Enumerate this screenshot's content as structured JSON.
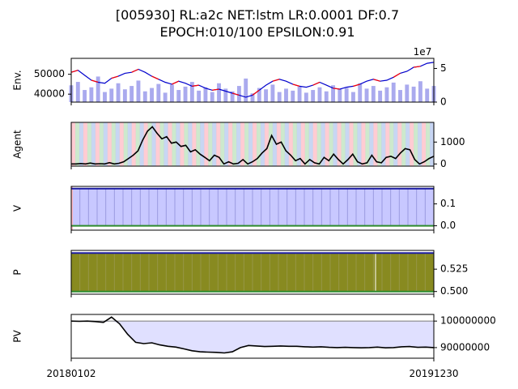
{
  "title": {
    "line1": "[005930] RL:a2c NET:lstm LR:0.0001 DF:0.7",
    "line2": "EPOCH:010/100 EPSILON:0.91"
  },
  "colors": {
    "price_line": "#0000cc",
    "price_up": "#ff0000",
    "volume": "#aaaaee",
    "agent_line": "#000000",
    "buy_band": "#ffb6c1",
    "sell_band": "#b0c4ee",
    "hold_band": "#b8e0b8",
    "v_fill": "#c8c8ff",
    "v_line_top": "#1a1aa0",
    "v_line_bottom": "#2e8b2e",
    "p_fill": "#888a20",
    "p_line_top": "#1a1aa0",
    "p_line_bottom": "#2e8b2e",
    "pv_line": "#000000",
    "pv_fill": "#e0e0ff",
    "pv_base": "#888888"
  },
  "x_ticks": [
    "20180102",
    "20191230"
  ],
  "chart_data": [
    {
      "type": "line",
      "name": "env",
      "ylabel": "Env.",
      "y_ticks": [
        40000,
        50000
      ],
      "ylim": [
        36000,
        58000
      ],
      "y2_ticks": [
        0,
        5
      ],
      "y2_label": "1e7",
      "y2lim": [
        0,
        6.5
      ],
      "price": [
        51000,
        52000,
        49500,
        47000,
        46000,
        45500,
        48000,
        49000,
        50500,
        51000,
        52500,
        51000,
        49000,
        47500,
        46000,
        45000,
        46500,
        45500,
        44000,
        44500,
        43000,
        42000,
        42500,
        41500,
        40500,
        39500,
        38500,
        39500,
        42000,
        44500,
        46500,
        47500,
        46500,
        45000,
        44000,
        43500,
        44500,
        46000,
        44500,
        43000,
        42500,
        43500,
        44000,
        45000,
        46500,
        47500,
        46500,
        47000,
        48500,
        50500,
        51500,
        53500,
        54000,
        55500,
        56000
      ],
      "volume": [
        2.5,
        3.0,
        1.8,
        2.2,
        3.8,
        1.5,
        2.0,
        2.8,
        1.9,
        2.4,
        3.2,
        1.6,
        2.1,
        2.7,
        1.4,
        2.6,
        1.8,
        2.3,
        3.0,
        1.7,
        2.2,
        1.5,
        2.8,
        2.0,
        1.6,
        2.4,
        3.5,
        1.3,
        2.1,
        1.9,
        2.6,
        1.5,
        2.0,
        1.7,
        2.3,
        1.4,
        1.8,
        2.2,
        1.6,
        2.5,
        1.9,
        2.1,
        1.5,
        2.8,
        2.0,
        2.4,
        1.7,
        2.2,
        2.9,
        1.8,
        2.6,
        2.3,
        3.1,
        2.0,
        2.4
      ]
    },
    {
      "type": "line",
      "name": "agent",
      "ylabel": "Agent",
      "y_ticks": [
        0,
        1000
      ],
      "ylim": [
        -100,
        1900
      ],
      "values": [
        0,
        0,
        20,
        0,
        40,
        0,
        10,
        0,
        60,
        0,
        30,
        100,
        250,
        400,
        600,
        1100,
        1500,
        1700,
        1400,
        1150,
        1250,
        950,
        1000,
        800,
        850,
        550,
        650,
        450,
        300,
        150,
        400,
        300,
        0,
        100,
        0,
        30,
        200,
        0,
        100,
        250,
        500,
        700,
        1300,
        900,
        1000,
        600,
        400,
        150,
        250,
        0,
        200,
        50,
        0,
        300,
        150,
        450,
        200,
        0,
        200,
        450,
        100,
        0,
        50,
        400,
        100,
        50,
        300,
        350,
        250,
        500,
        700,
        650,
        200,
        0,
        100,
        250,
        350
      ]
    },
    {
      "type": "line",
      "name": "v",
      "ylabel": "V",
      "y_ticks": [
        0.0,
        0.1
      ],
      "ylim": [
        -0.02,
        0.18
      ],
      "top": 0.17,
      "bottom": 0.0
    },
    {
      "type": "line",
      "name": "p",
      "ylabel": "P",
      "y_ticks": [
        0.5,
        0.525
      ],
      "ylim": [
        0.497,
        0.546
      ],
      "top": 0.543,
      "bottom": 0.5
    },
    {
      "type": "area",
      "name": "pv",
      "ylabel": "PV",
      "y_ticks": [
        90000000,
        100000000
      ],
      "ylim": [
        86000000,
        102500000
      ],
      "base": 100000000,
      "values": [
        100000000,
        99900000,
        100000000,
        99800000,
        99500000,
        101500000,
        99000000,
        95000000,
        92000000,
        91500000,
        91800000,
        91000000,
        90500000,
        90200000,
        89500000,
        88800000,
        88400000,
        88300000,
        88200000,
        88000000,
        88400000,
        90000000,
        90800000,
        90600000,
        90400000,
        90500000,
        90600000,
        90500000,
        90500000,
        90300000,
        90200000,
        90300000,
        90100000,
        90000000,
        90100000,
        90000000,
        89900000,
        90000000,
        90200000,
        89900000,
        90000000,
        90300000,
        90400000,
        90100000,
        90200000,
        90000000
      ]
    }
  ]
}
